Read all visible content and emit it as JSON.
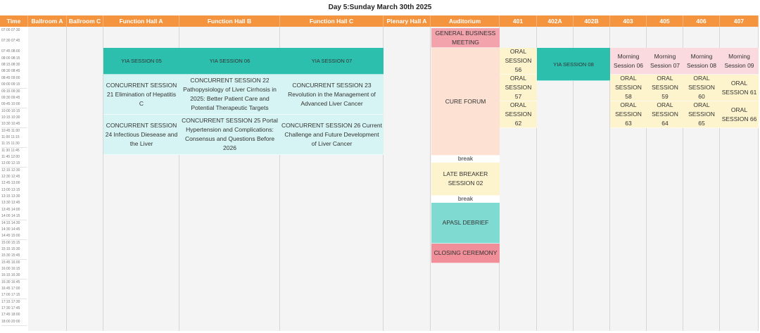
{
  "title": "Day 5:Sunday March 30th 2025",
  "colors": {
    "header": "#f5943f",
    "teal": "#2cbfae",
    "light_cyan": "#d6f4f3",
    "pink": "#f2a3ac",
    "peach": "#fde1d2",
    "yellow": "#fdf3cc",
    "light_teal": "#7fdad2",
    "rose": "#f08f99",
    "light_pink": "#fadadf"
  },
  "columns": [
    "Time",
    "Ballroom A",
    "Ballroom C",
    "Function Hall A",
    "Function Hall B",
    "Function Hall C",
    "Plenary Hall A",
    "Auditorium",
    "401",
    "402A",
    "402B",
    "403",
    "405",
    "406",
    "407"
  ],
  "times": [
    "07:00 07:30",
    "07:30 07:45",
    "07:45 08:00",
    "08:00 08:15",
    "08:15 08:30",
    "08:30 08:45",
    "08:45 09:00",
    "09:00 09:15",
    "09:15 09:30",
    "09:30 09:45",
    "09:45 10:00",
    "10:00 10:15",
    "10:15 10:30",
    "10:30 10:45",
    "10:45 11:00",
    "11:00 11:15",
    "11:15 11:30",
    "11:30 11:45",
    "11:45 12:00",
    "12:00 12:15",
    "12:15 12:30",
    "12:30 12:45",
    "12:45 13:00",
    "13:00 13:15",
    "13:15 13:30",
    "13:30 13:45",
    "13:45 14:00",
    "14:00 14:15",
    "14:15 14:30",
    "14:30 14:45",
    "14:45 15:00",
    "15:00 15:15",
    "15:15 15:30",
    "15:30 15:45",
    "15:45 16:00",
    "16:00 16:15",
    "16:15 16:30",
    "16:30 16:45",
    "16:45 17:00",
    "17:00 17:15",
    "17:15 17:30",
    "17:30 17:45",
    "17:45 18:00",
    "18:00 20:00"
  ],
  "events": [
    {
      "label": "YIA SESSION 05",
      "room": "Function Hall A",
      "type": "teal"
    },
    {
      "label": "YIA SESSION 06",
      "room": "Function Hall B",
      "type": "teal"
    },
    {
      "label": "YIA SESSION 07",
      "room": "Function Hall C",
      "type": "teal"
    },
    {
      "label": "CONCURRENT SESSION 21 Elimination of Hepatitis C",
      "room": "Function Hall A",
      "type": "light_cyan"
    },
    {
      "label": "CONCURRENT SESSION 22 Pathopysiology of Liver Cirrhosis in 2025: Better Patient Care and Potential Therapeutic Targets",
      "room": "Function Hall B",
      "type": "light_cyan"
    },
    {
      "label": "CONCURRENT SESSION 23 Revolution in the Management of Advanced Liver Cancer",
      "room": "Function Hall C",
      "type": "light_cyan"
    },
    {
      "label": "CONCURRENT SESSION 24 Infectious Diesease and the Liver",
      "room": "Function Hall A",
      "type": "light_cyan"
    },
    {
      "label": "CONCURRENT SESSION 25 Portal Hypertension and Complications: Consensus and Questions Before 2026",
      "room": "Function Hall B",
      "type": "light_cyan"
    },
    {
      "label": "CONCURRENT SESSION 26 Current Challenge and Future Development of Liver Cancer",
      "room": "Function Hall C",
      "type": "light_cyan"
    },
    {
      "label": "GENERAL BUSINESS MEETING",
      "room": "Auditorium",
      "type": "pink"
    },
    {
      "label": "CURE FORUM",
      "room": "Auditorium",
      "type": "peach"
    },
    {
      "label": "break",
      "room": "Auditorium",
      "type": "white"
    },
    {
      "label": "LATE BREAKER SESSION 02",
      "room": "Auditorium",
      "type": "yellow"
    },
    {
      "label": "break",
      "room": "Auditorium",
      "type": "white"
    },
    {
      "label": "APASL DEBRIEF",
      "room": "Auditorium",
      "type": "light_teal"
    },
    {
      "label": "CLOSING CEREMONY",
      "room": "Auditorium",
      "type": "rose"
    },
    {
      "label": "ORAL SESSION 56",
      "room": "401",
      "type": "yellow"
    },
    {
      "label": "ORAL SESSION 57",
      "room": "401",
      "type": "yellow"
    },
    {
      "label": "ORAL SESSION 62",
      "room": "401",
      "type": "yellow"
    },
    {
      "label": "YIA SESSION 08",
      "room": "402A-402B",
      "type": "teal"
    },
    {
      "label": "Morning Session 06",
      "room": "403",
      "type": "light_pink"
    },
    {
      "label": "Morning Session 07",
      "room": "405",
      "type": "light_pink"
    },
    {
      "label": "Morning Session 08",
      "room": "406",
      "type": "light_pink"
    },
    {
      "label": "Morning Session 09",
      "room": "407",
      "type": "light_pink"
    },
    {
      "label": "ORAL SESSION 58",
      "room": "403",
      "type": "yellow"
    },
    {
      "label": "ORAL SESSION 59",
      "room": "405",
      "type": "yellow"
    },
    {
      "label": "ORAL SESSION 60",
      "room": "406",
      "type": "yellow"
    },
    {
      "label": "ORAL SESSION 61",
      "room": "407",
      "type": "yellow"
    },
    {
      "label": "ORAL SESSION 63",
      "room": "403",
      "type": "yellow"
    },
    {
      "label": "ORAL SESSION 64",
      "room": "405",
      "type": "yellow"
    },
    {
      "label": "ORAL SESSION 65",
      "room": "406",
      "type": "yellow"
    },
    {
      "label": "ORAL SESSION 66",
      "room": "407",
      "type": "yellow"
    }
  ]
}
